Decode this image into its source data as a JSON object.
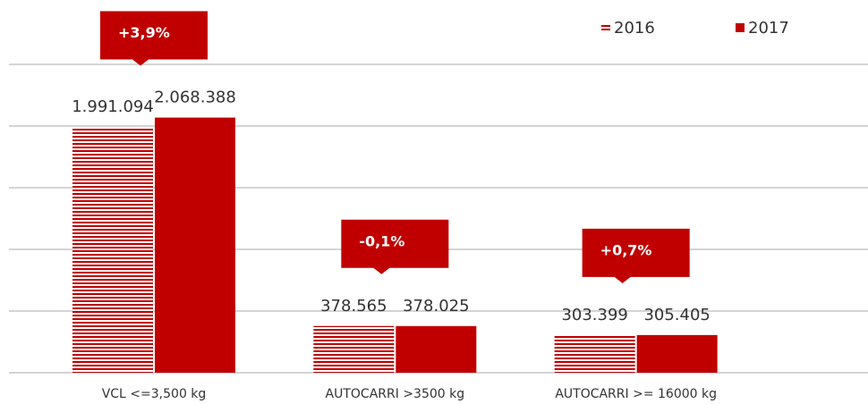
{
  "chart_data": {
    "type": "bar",
    "categories": [
      "VCL <=3,500 kg",
      "AUTOCARRI >3500 kg",
      "AUTOCARRI >= 16000 kg"
    ],
    "series": [
      {
        "name": "2016",
        "color": "#c00000",
        "values": [
          1991094,
          378565,
          303399
        ],
        "value_labels": [
          "1.991.094",
          "378.565",
          "303.399"
        ]
      },
      {
        "name": "2017",
        "color": "#c00000",
        "values": [
          2068388,
          378025,
          305405
        ],
        "value_labels": [
          "2.068.388",
          "378.025",
          "305.405"
        ]
      }
    ],
    "annotations": [
      "+3,9%",
      "-0,1%",
      "+0,7%"
    ],
    "ylim": [
      0,
      2500000
    ],
    "yticks": [
      0,
      500000,
      1000000,
      1500000,
      2000000,
      2500000
    ],
    "grid": true
  }
}
